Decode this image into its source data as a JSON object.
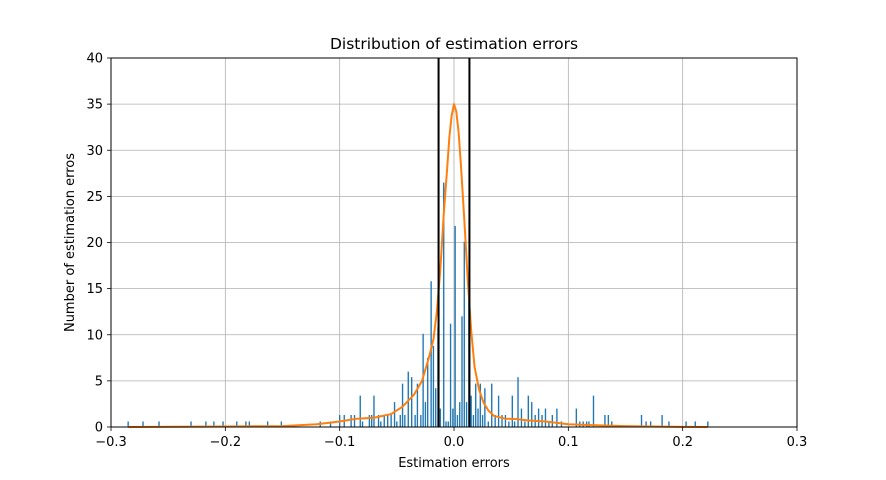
{
  "chart_data": {
    "type": "bar",
    "title": "Distribution of estimation errors",
    "xlabel": "Estimation errors",
    "ylabel": "Number of estimation erros",
    "xlim": [
      -0.3,
      0.3
    ],
    "ylim": [
      0,
      40
    ],
    "x_ticks": [
      -0.3,
      -0.2,
      -0.1,
      0.0,
      0.1,
      0.2,
      0.3
    ],
    "x_tick_labels": [
      "−0.3",
      "−0.2",
      "−0.1",
      "0.0",
      "0.1",
      "0.2",
      "0.3"
    ],
    "y_ticks": [
      0,
      5,
      10,
      15,
      20,
      25,
      30,
      35,
      40
    ],
    "y_tick_labels": [
      "0",
      "5",
      "10",
      "15",
      "20",
      "25",
      "30",
      "35",
      "40"
    ],
    "grid": true,
    "colors": {
      "bars": "#1f77b4",
      "density": "#ff7f0e",
      "vlines": "#000000",
      "grid": "#b0b0b0"
    },
    "bar_width": 0.0012,
    "histogram": {
      "x": [
        -0.285,
        -0.272,
        -0.258,
        -0.23,
        -0.217,
        -0.21,
        -0.202,
        -0.19,
        -0.182,
        -0.179,
        -0.163,
        -0.151,
        -0.117,
        -0.108,
        -0.1,
        -0.096,
        -0.09,
        -0.087,
        -0.082,
        -0.08,
        -0.074,
        -0.072,
        -0.07,
        -0.066,
        -0.064,
        -0.061,
        -0.058,
        -0.055,
        -0.052,
        -0.05,
        -0.047,
        -0.045,
        -0.043,
        -0.04,
        -0.037,
        -0.034,
        -0.032,
        -0.029,
        -0.027,
        -0.025,
        -0.023,
        -0.02,
        -0.018,
        -0.016,
        -0.014,
        -0.012,
        -0.009,
        -0.007,
        -0.005,
        -0.003,
        -0.001,
        0.001,
        0.003,
        0.005,
        0.007,
        0.009,
        0.011,
        0.013,
        0.015,
        0.017,
        0.019,
        0.021,
        0.023,
        0.025,
        0.027,
        0.03,
        0.033,
        0.036,
        0.039,
        0.042,
        0.045,
        0.048,
        0.051,
        0.053,
        0.056,
        0.059,
        0.062,
        0.065,
        0.068,
        0.071,
        0.074,
        0.077,
        0.08,
        0.083,
        0.086,
        0.09,
        0.094,
        0.107,
        0.11,
        0.113,
        0.116,
        0.118,
        0.122,
        0.132,
        0.135,
        0.138,
        0.164,
        0.168,
        0.172,
        0.182,
        0.188,
        0.203,
        0.211,
        0.222
      ],
      "values": [
        0.6,
        0.6,
        0.6,
        0.6,
        0.6,
        0.6,
        0.6,
        0.6,
        0.6,
        0.6,
        0.6,
        0.6,
        0.6,
        0.6,
        1.3,
        1.3,
        1.3,
        1.3,
        3.4,
        0.6,
        1.3,
        1.3,
        3.4,
        1.3,
        0.6,
        1.3,
        1.3,
        1.3,
        2.7,
        0.6,
        1.3,
        4.7,
        1.3,
        6.0,
        5.4,
        1.3,
        4.7,
        1.3,
        10.1,
        2.7,
        7.5,
        15.8,
        8.8,
        4.2,
        10.8,
        2.0,
        26.5,
        0.6,
        0.6,
        11.2,
        2.0,
        21.8,
        1.3,
        2.7,
        12.0,
        20.1,
        2.7,
        14.2,
        3.4,
        1.3,
        4.7,
        2.0,
        4.7,
        1.3,
        4.2,
        0.6,
        4.7,
        1.3,
        3.4,
        1.3,
        1.3,
        0.6,
        3.4,
        0.6,
        5.4,
        2.0,
        0.6,
        3.4,
        2.7,
        1.3,
        2.0,
        1.3,
        2.0,
        0.6,
        1.3,
        2.0,
        0.6,
        2.0,
        0.6,
        0.6,
        0.6,
        0.6,
        3.4,
        1.3,
        1.3,
        0.6,
        1.3,
        0.6,
        0.6,
        1.3,
        0.6,
        0.6,
        0.6,
        0.6
      ]
    },
    "density_curve": {
      "x": [
        -0.285,
        -0.2,
        -0.15,
        -0.12,
        -0.1,
        -0.085,
        -0.07,
        -0.055,
        -0.045,
        -0.035,
        -0.028,
        -0.022,
        -0.018,
        -0.015,
        -0.012,
        -0.009,
        -0.006,
        -0.004,
        -0.002,
        0.0,
        0.002,
        0.004,
        0.006,
        0.009,
        0.012,
        0.015,
        0.018,
        0.022,
        0.026,
        0.03,
        0.035,
        0.045,
        0.055,
        0.065,
        0.08,
        0.1,
        0.12,
        0.15,
        0.2,
        0.222
      ],
      "y": [
        0.0,
        0.05,
        0.1,
        0.3,
        0.6,
        0.9,
        1.0,
        1.4,
        2.2,
        3.5,
        5.0,
        7.5,
        9.5,
        12.5,
        17.0,
        23.0,
        28.0,
        31.5,
        33.8,
        35.0,
        34.2,
        32.0,
        28.5,
        22.5,
        16.0,
        10.5,
        6.5,
        4.0,
        2.6,
        1.8,
        1.2,
        0.9,
        0.85,
        0.7,
        0.6,
        0.3,
        0.2,
        0.1,
        0.02,
        0.0
      ]
    },
    "vertical_lines": [
      -0.0135,
      0.0135
    ]
  }
}
